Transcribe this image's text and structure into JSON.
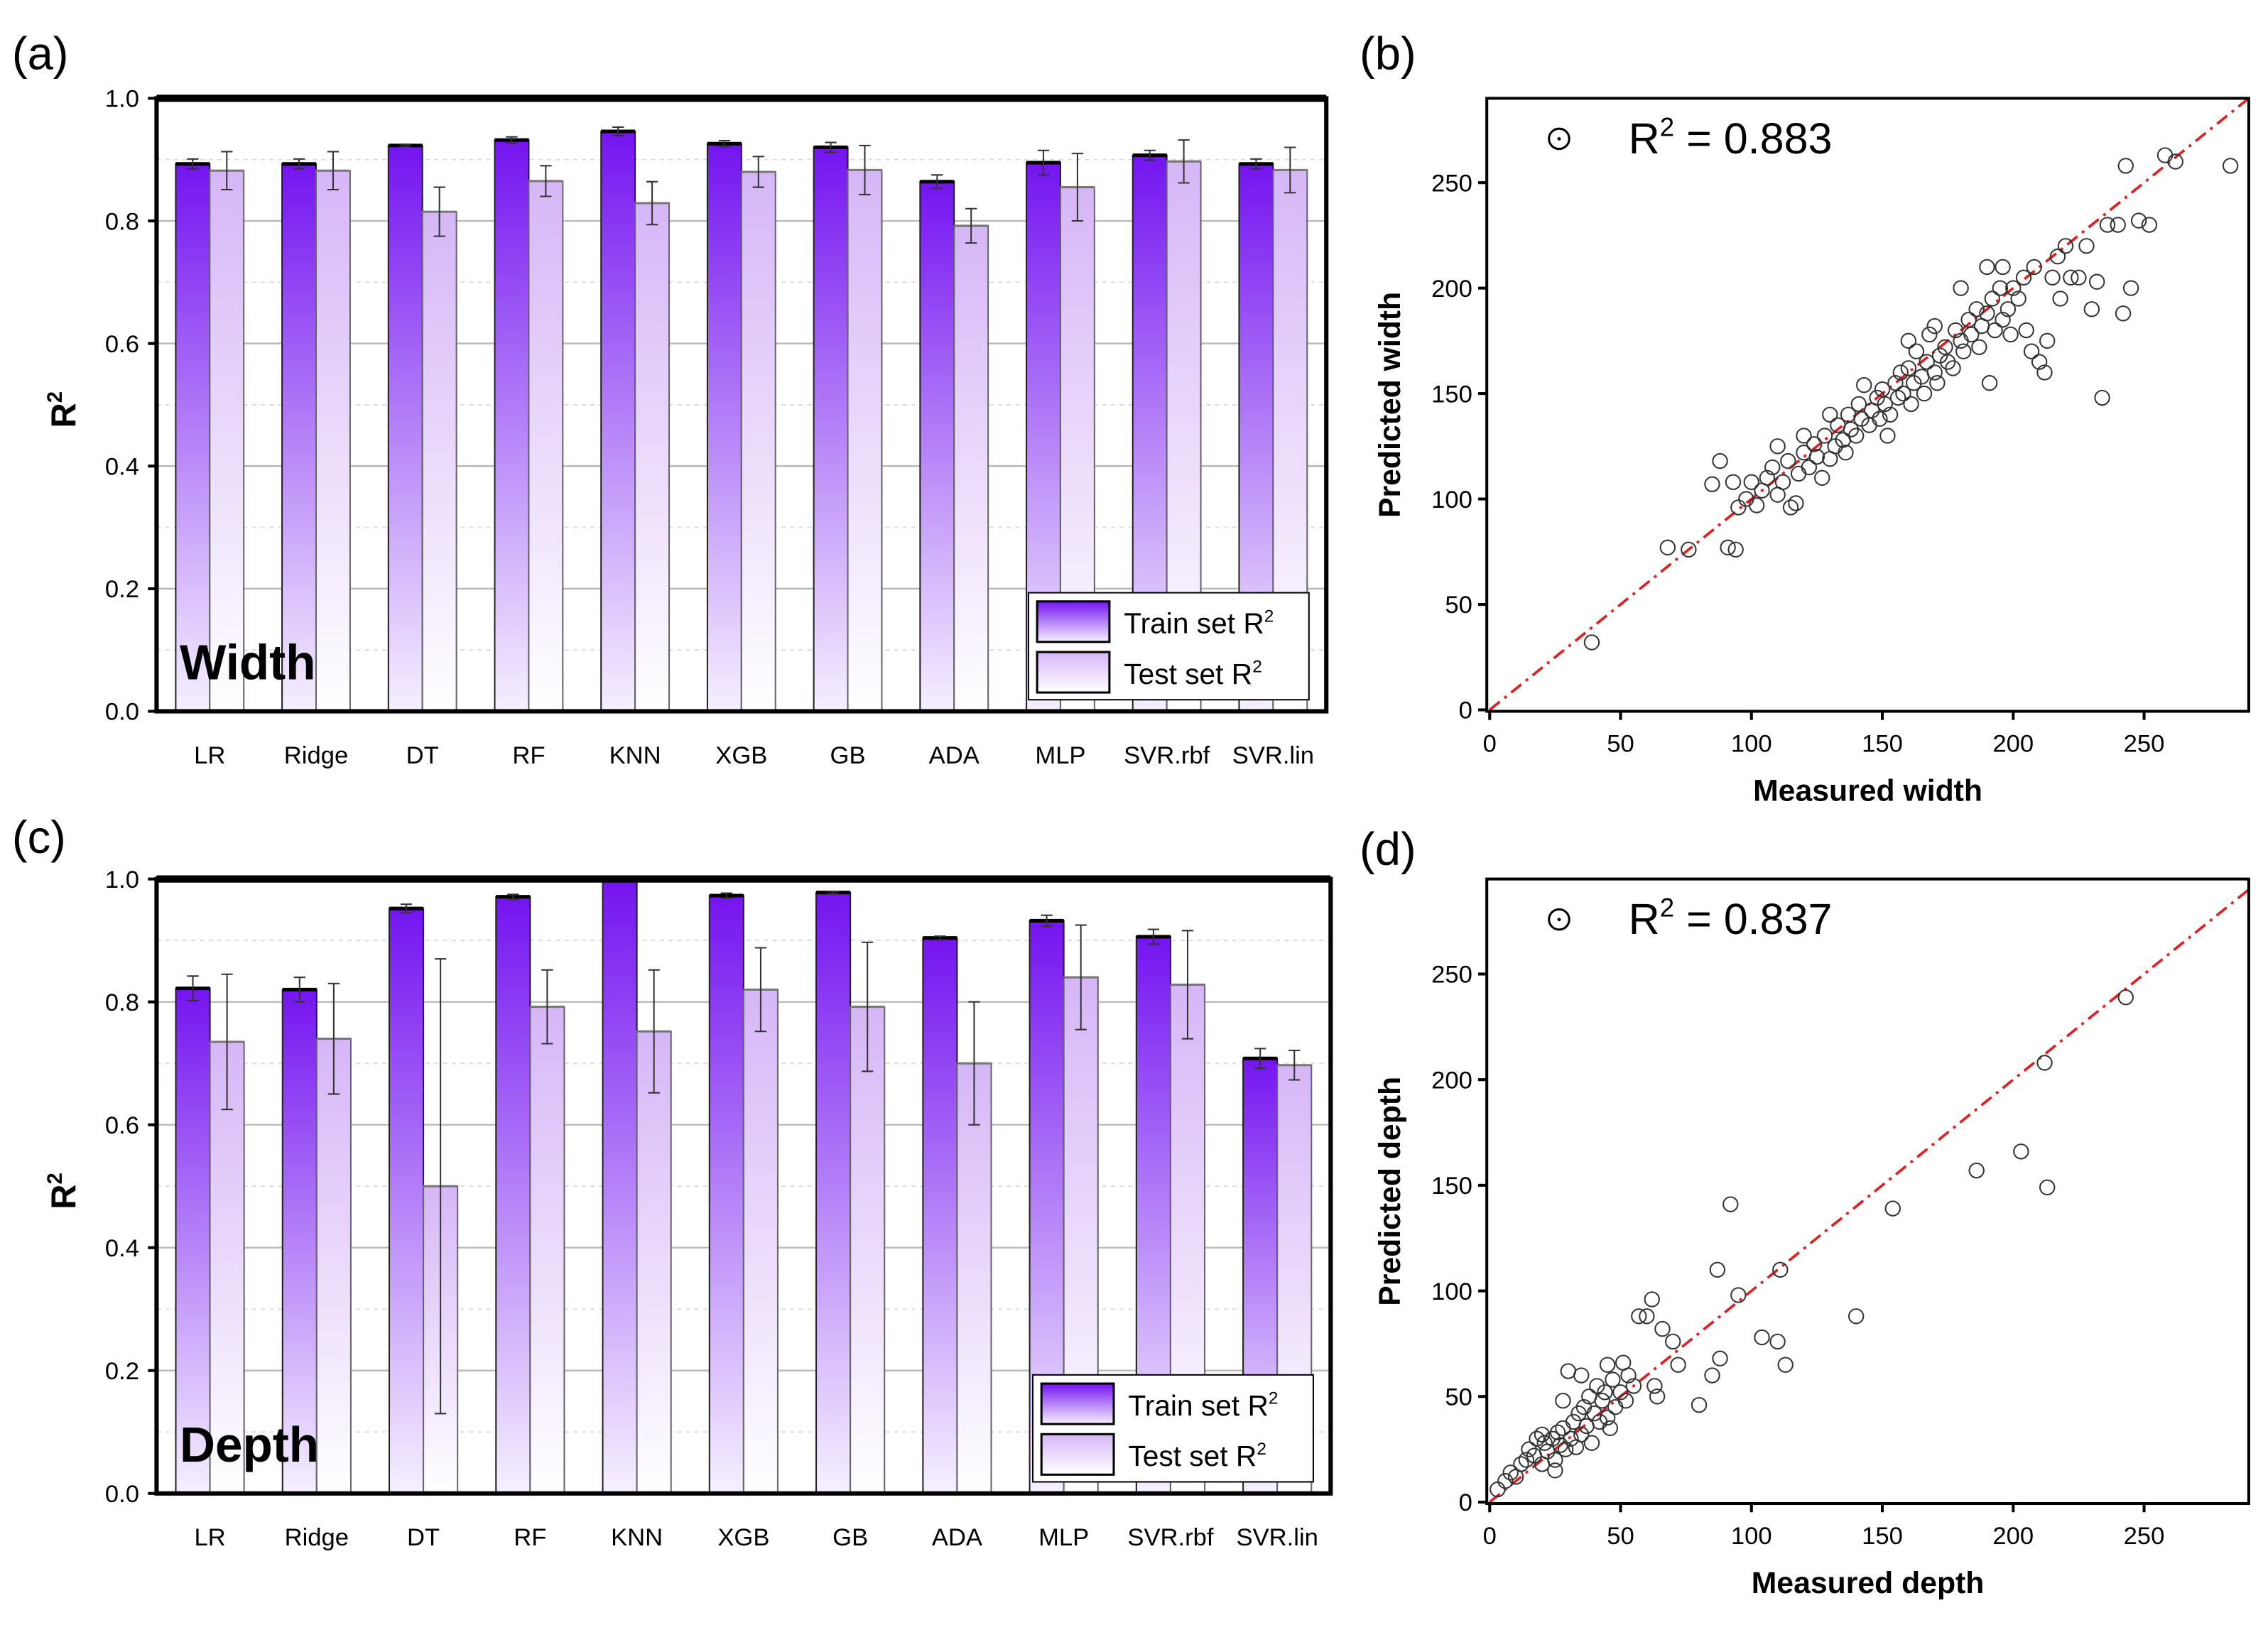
{
  "chart_data": [
    {
      "panel": "(a)",
      "type": "bar",
      "title_label": "Width",
      "ylabel": "R",
      "ylabel_sup": "2",
      "ylim": [
        0,
        1
      ],
      "yticks": [
        "0.0",
        "0.2",
        "0.4",
        "0.6",
        "0.8",
        "1.0"
      ],
      "categories": [
        "LR",
        "Ridge",
        "DT",
        "RF",
        "KNN",
        "XGB",
        "GB",
        "ADA",
        "MLP",
        "SVR.rbf",
        "SVR.lin"
      ],
      "series": [
        {
          "name": "Train set R",
          "sup": "2",
          "values": [
            0.893,
            0.893,
            0.923,
            0.932,
            0.946,
            0.926,
            0.92,
            0.864,
            0.895,
            0.907,
            0.893
          ],
          "errors": [
            0.008,
            0.008,
            0.002,
            0.005,
            0.007,
            0.005,
            0.008,
            0.011,
            0.02,
            0.008,
            0.008
          ]
        },
        {
          "name": "Test set R",
          "sup": "2",
          "values": [
            0.882,
            0.882,
            0.815,
            0.865,
            0.829,
            0.88,
            0.883,
            0.792,
            0.855,
            0.897,
            0.883
          ],
          "errors": [
            0.031,
            0.031,
            0.04,
            0.025,
            0.035,
            0.025,
            0.04,
            0.028,
            0.055,
            0.035,
            0.037
          ]
        }
      ],
      "legend": "bottom-right",
      "grid": true
    },
    {
      "panel": "(b)",
      "type": "scatter",
      "r2_label": "R",
      "r2_sup": "2",
      "r2_value": " = 0.883",
      "xlabel": "Measured width",
      "ylabel": "Predicted width",
      "xlim": [
        0,
        290
      ],
      "ylim": [
        0,
        290
      ],
      "xticks": [
        0,
        50,
        100,
        150,
        200,
        250
      ],
      "yticks": [
        0,
        50,
        100,
        150,
        200,
        250
      ],
      "fit_line": "y = x",
      "points": [
        [
          39,
          32
        ],
        [
          68,
          77
        ],
        [
          76,
          76
        ],
        [
          85,
          107
        ],
        [
          88,
          118
        ],
        [
          91,
          77
        ],
        [
          94,
          76
        ],
        [
          93,
          108
        ],
        [
          95,
          96
        ],
        [
          98,
          100
        ],
        [
          100,
          108
        ],
        [
          102,
          97
        ],
        [
          104,
          104
        ],
        [
          106,
          110
        ],
        [
          108,
          115
        ],
        [
          110,
          102
        ],
        [
          112,
          108
        ],
        [
          114,
          118
        ],
        [
          115,
          96
        ],
        [
          117,
          98
        ],
        [
          118,
          112
        ],
        [
          120,
          122
        ],
        [
          122,
          115
        ],
        [
          124,
          126
        ],
        [
          125,
          120
        ],
        [
          127,
          110
        ],
        [
          128,
          130
        ],
        [
          130,
          119
        ],
        [
          132,
          125
        ],
        [
          133,
          135
        ],
        [
          135,
          128
        ],
        [
          136,
          122
        ],
        [
          137,
          140
        ],
        [
          138,
          133
        ],
        [
          140,
          130
        ],
        [
          141,
          145
        ],
        [
          142,
          138
        ],
        [
          143,
          154
        ],
        [
          145,
          135
        ],
        [
          146,
          142
        ],
        [
          148,
          148
        ],
        [
          149,
          138
        ],
        [
          150,
          152
        ],
        [
          151,
          145
        ],
        [
          152,
          130
        ],
        [
          153,
          140
        ],
        [
          155,
          155
        ],
        [
          156,
          148
        ],
        [
          157,
          160
        ],
        [
          158,
          150
        ],
        [
          160,
          162
        ],
        [
          161,
          145
        ],
        [
          162,
          155
        ],
        [
          163,
          170
        ],
        [
          165,
          158
        ],
        [
          166,
          150
        ],
        [
          167,
          165
        ],
        [
          168,
          178
        ],
        [
          170,
          160
        ],
        [
          171,
          155
        ],
        [
          172,
          168
        ],
        [
          174,
          172
        ],
        [
          175,
          165
        ],
        [
          177,
          162
        ],
        [
          178,
          180
        ],
        [
          180,
          175
        ],
        [
          181,
          170
        ],
        [
          183,
          185
        ],
        [
          184,
          178
        ],
        [
          186,
          190
        ],
        [
          187,
          172
        ],
        [
          188,
          182
        ],
        [
          190,
          188
        ],
        [
          191,
          155
        ],
        [
          192,
          195
        ],
        [
          193,
          180
        ],
        [
          195,
          200
        ],
        [
          196,
          185
        ],
        [
          198,
          190
        ],
        [
          199,
          178
        ],
        [
          200,
          200
        ],
        [
          202,
          195
        ],
        [
          204,
          205
        ],
        [
          205,
          180
        ],
        [
          207,
          170
        ],
        [
          208,
          210
        ],
        [
          210,
          165
        ],
        [
          212,
          160
        ],
        [
          213,
          175
        ],
        [
          215,
          205
        ],
        [
          217,
          215
        ],
        [
          218,
          195
        ],
        [
          220,
          220
        ],
        [
          222,
          205
        ],
        [
          225,
          205
        ],
        [
          228,
          220
        ],
        [
          230,
          190
        ],
        [
          232,
          203
        ],
        [
          234,
          148
        ],
        [
          236,
          230
        ],
        [
          240,
          230
        ],
        [
          242,
          188
        ],
        [
          243,
          258
        ],
        [
          245,
          200
        ],
        [
          248,
          232
        ],
        [
          252,
          230
        ],
        [
          258,
          263
        ],
        [
          262,
          260
        ],
        [
          283,
          258
        ],
        [
          190,
          210
        ],
        [
          196,
          210
        ],
        [
          180,
          200
        ],
        [
          170,
          182
        ],
        [
          160,
          175
        ],
        [
          120,
          130
        ],
        [
          130,
          140
        ],
        [
          110,
          125
        ]
      ]
    },
    {
      "panel": "(c)",
      "type": "bar",
      "title_label": "Depth",
      "ylabel": "R",
      "ylabel_sup": "2",
      "ylim": [
        0,
        1
      ],
      "yticks": [
        "0.0",
        "0.2",
        "0.4",
        "0.6",
        "0.8",
        "1.0"
      ],
      "categories": [
        "LR",
        "Ridge",
        "DT",
        "RF",
        "KNN",
        "XGB",
        "GB",
        "ADA",
        "MLP",
        "SVR.rbf",
        "SVR.lin"
      ],
      "series": [
        {
          "name": "Train set R",
          "sup": "2",
          "values": [
            0.822,
            0.82,
            0.952,
            0.971,
            1.0,
            0.973,
            0.978,
            0.904,
            0.932,
            0.906,
            0.708
          ],
          "errors": [
            0.02,
            0.02,
            0.007,
            0.004,
            0,
            0.004,
            0.002,
            0.003,
            0.009,
            0.012,
            0.016
          ]
        },
        {
          "name": "Test set R",
          "sup": "2",
          "values": [
            0.735,
            0.74,
            0.5,
            0.792,
            0.752,
            0.82,
            0.792,
            0.7,
            0.84,
            0.828,
            0.697
          ],
          "errors": [
            0.11,
            0.09,
            0.37,
            0.06,
            0.1,
            0.068,
            0.105,
            0.1,
            0.085,
            0.088,
            0.024
          ]
        }
      ],
      "legend": "bottom-right",
      "grid": true
    },
    {
      "panel": "(d)",
      "type": "scatter",
      "r2_label": "R",
      "r2_sup": "2",
      "r2_value": " = 0.837",
      "xlabel": "Measured depth",
      "ylabel": "Predicted depth",
      "xlim": [
        0,
        290
      ],
      "ylim": [
        0,
        295
      ],
      "xticks": [
        0,
        50,
        100,
        150,
        200,
        250
      ],
      "yticks": [
        0,
        50,
        100,
        150,
        200,
        250
      ],
      "fit_line": "y = x",
      "points": [
        [
          3,
          6
        ],
        [
          6,
          10
        ],
        [
          8,
          14
        ],
        [
          10,
          12
        ],
        [
          12,
          18
        ],
        [
          14,
          20
        ],
        [
          15,
          25
        ],
        [
          17,
          22
        ],
        [
          18,
          30
        ],
        [
          20,
          18
        ],
        [
          21,
          28
        ],
        [
          22,
          24
        ],
        [
          24,
          30
        ],
        [
          25,
          20
        ],
        [
          26,
          33
        ],
        [
          27,
          27
        ],
        [
          28,
          35
        ],
        [
          29,
          25
        ],
        [
          30,
          62
        ],
        [
          31,
          30
        ],
        [
          32,
          38
        ],
        [
          33,
          26
        ],
        [
          34,
          42
        ],
        [
          35,
          32
        ],
        [
          36,
          45
        ],
        [
          37,
          36
        ],
        [
          38,
          50
        ],
        [
          39,
          28
        ],
        [
          40,
          42
        ],
        [
          41,
          55
        ],
        [
          42,
          38
        ],
        [
          43,
          48
        ],
        [
          44,
          52
        ],
        [
          45,
          40
        ],
        [
          46,
          35
        ],
        [
          47,
          58
        ],
        [
          48,
          45
        ],
        [
          50,
          52
        ],
        [
          51,
          66
        ],
        [
          52,
          48
        ],
        [
          53,
          60
        ],
        [
          55,
          55
        ],
        [
          57,
          88
        ],
        [
          60,
          88
        ],
        [
          62,
          96
        ],
        [
          63,
          55
        ],
        [
          64,
          50
        ],
        [
          66,
          82
        ],
        [
          70,
          76
        ],
        [
          72,
          65
        ],
        [
          80,
          46
        ],
        [
          85,
          60
        ],
        [
          87,
          110
        ],
        [
          88,
          68
        ],
        [
          92,
          141
        ],
        [
          95,
          98
        ],
        [
          104,
          78
        ],
        [
          110,
          76
        ],
        [
          111,
          110
        ],
        [
          113,
          65
        ],
        [
          140,
          88
        ],
        [
          154,
          139
        ],
        [
          186,
          157
        ],
        [
          203,
          166
        ],
        [
          212,
          208
        ],
        [
          213,
          149
        ],
        [
          243,
          239
        ],
        [
          20,
          32
        ],
        [
          25,
          15
        ],
        [
          35,
          60
        ],
        [
          45,
          65
        ],
        [
          28,
          48
        ]
      ]
    }
  ],
  "colors": {
    "train_top": "#7414f0",
    "train_bottom": "#f6f0ff",
    "test_top": "#d6b6f7",
    "test_bottom": "#ffffff",
    "fit_line": "#e02020"
  }
}
